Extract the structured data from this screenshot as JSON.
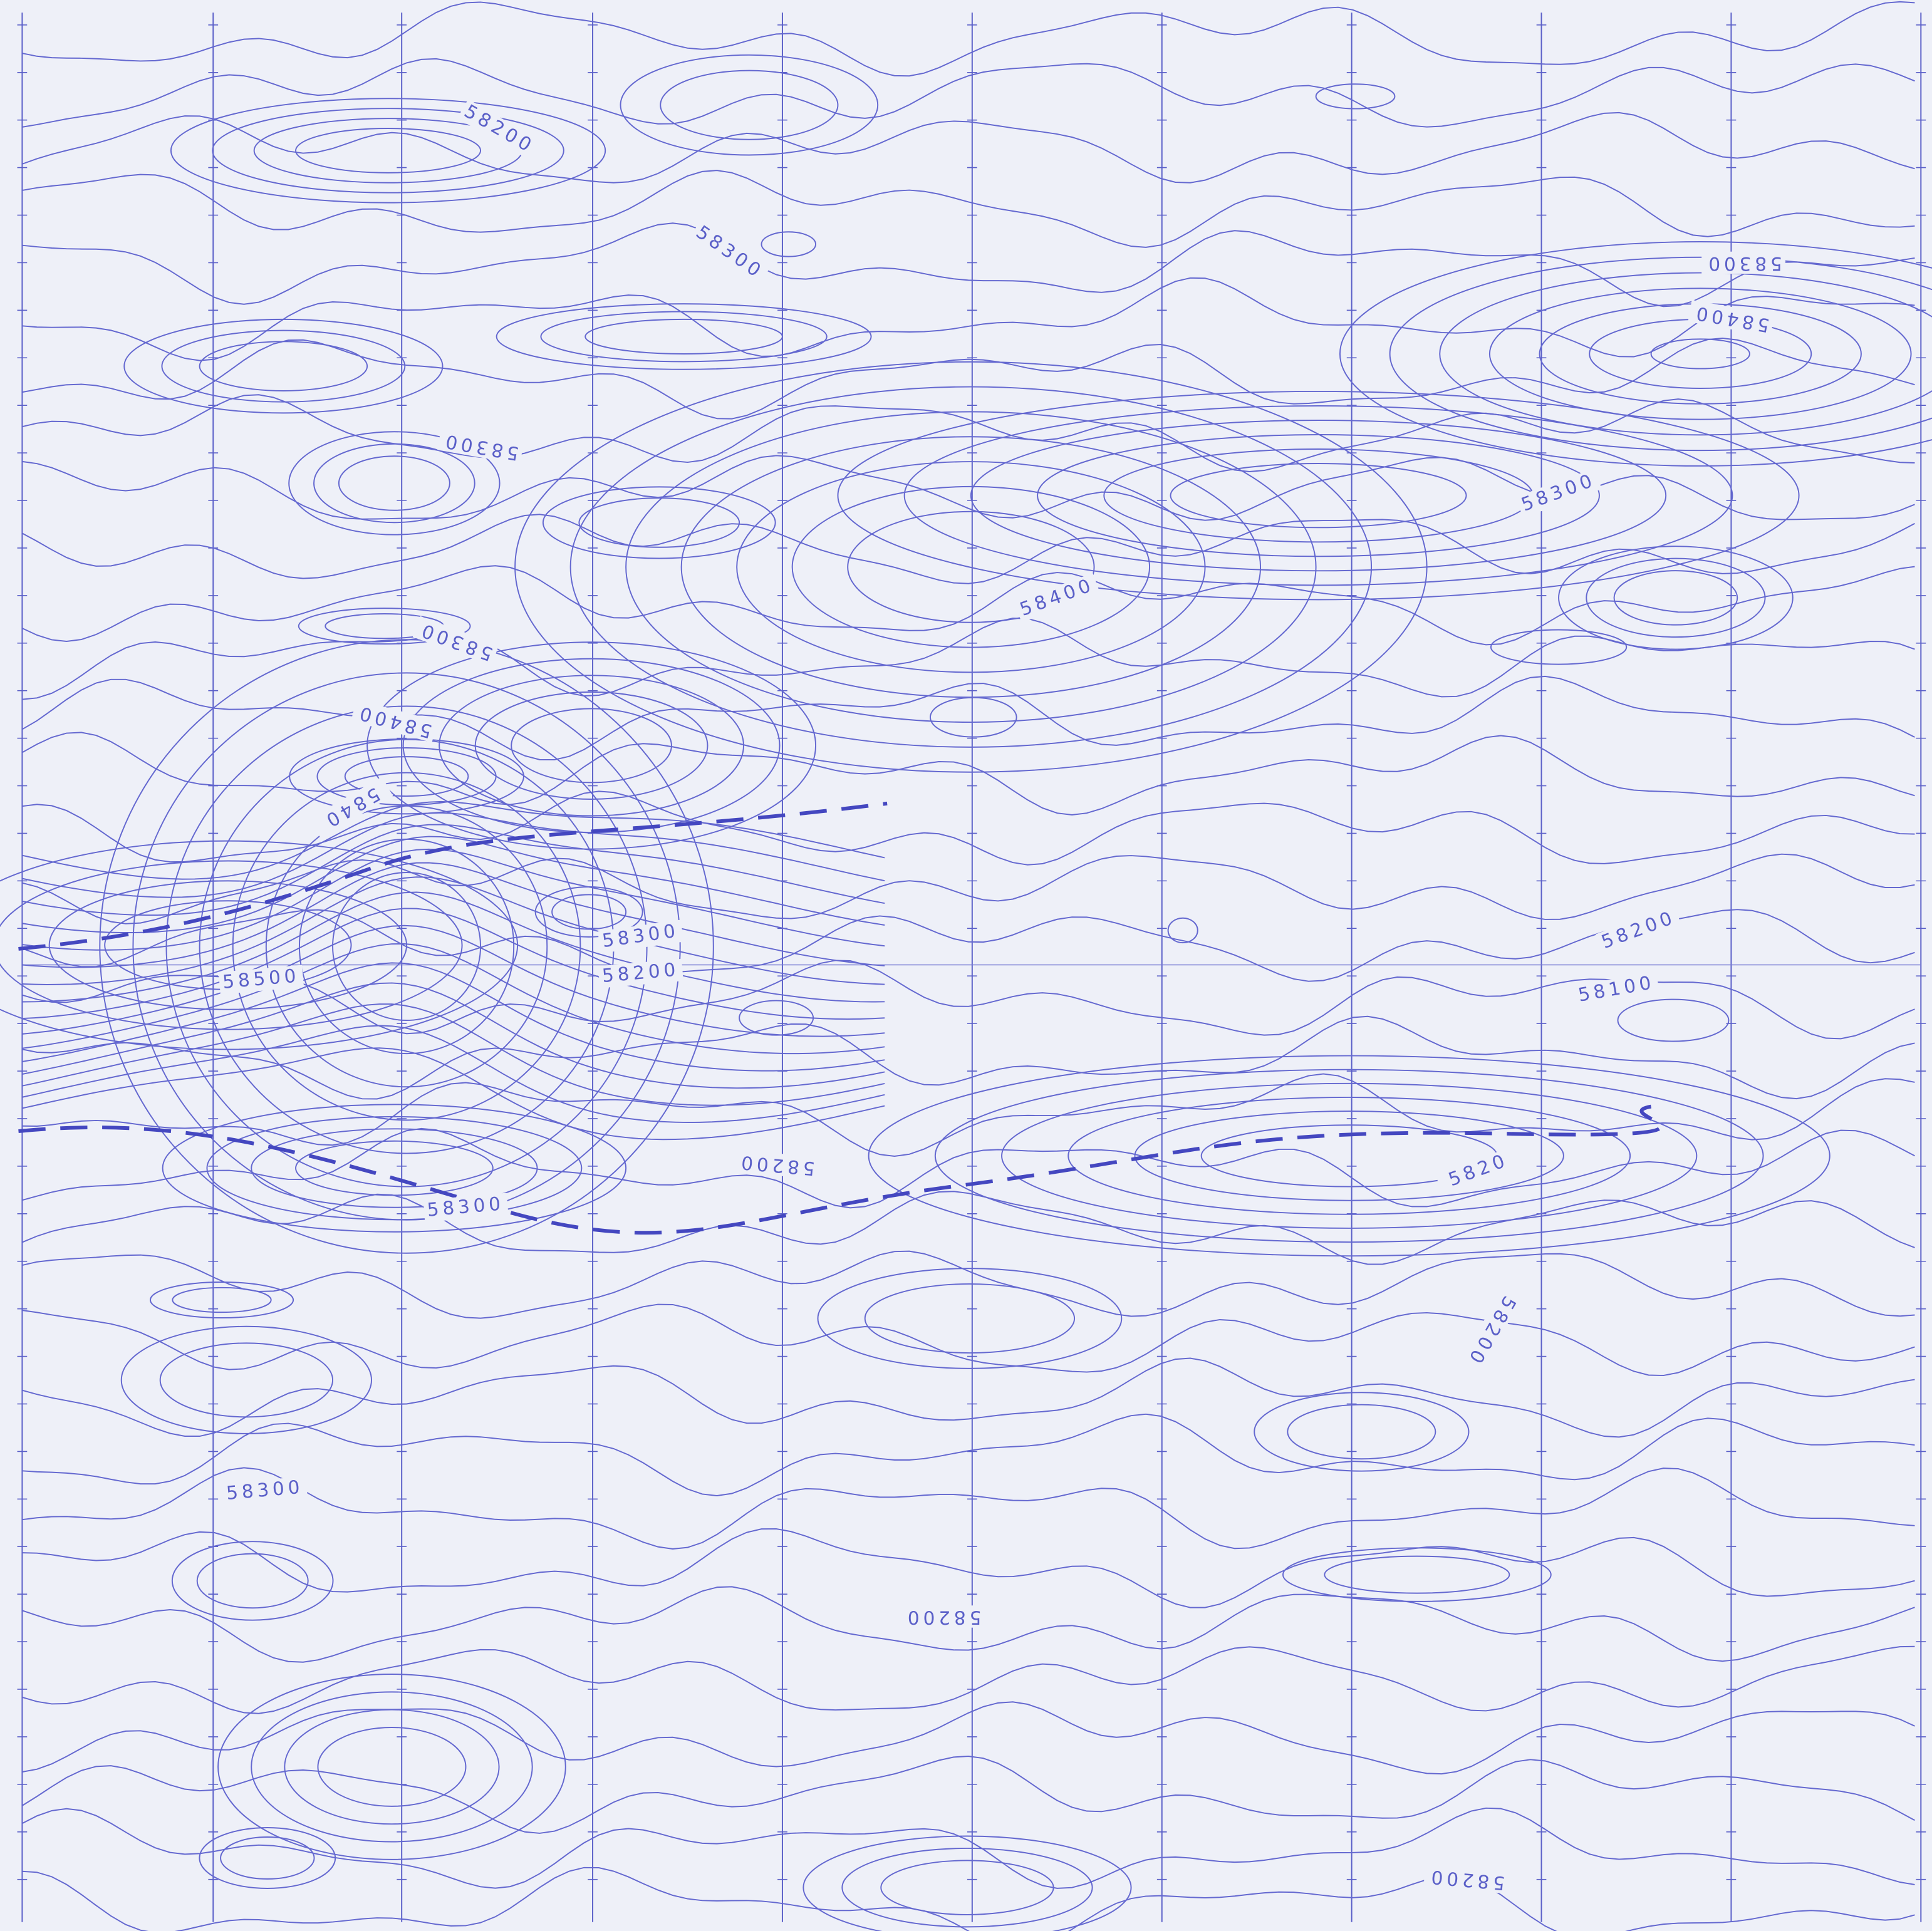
{
  "labels": [
    "58200",
    "58300",
    "58300",
    "58400",
    "58300",
    "58300",
    "58400",
    "5840",
    "58400",
    "58300",
    "58300",
    "58200",
    "58500",
    "58200",
    "58100",
    "58200",
    "58300",
    "5820",
    "58200",
    "58300",
    "58200",
    "58200"
  ]
}
